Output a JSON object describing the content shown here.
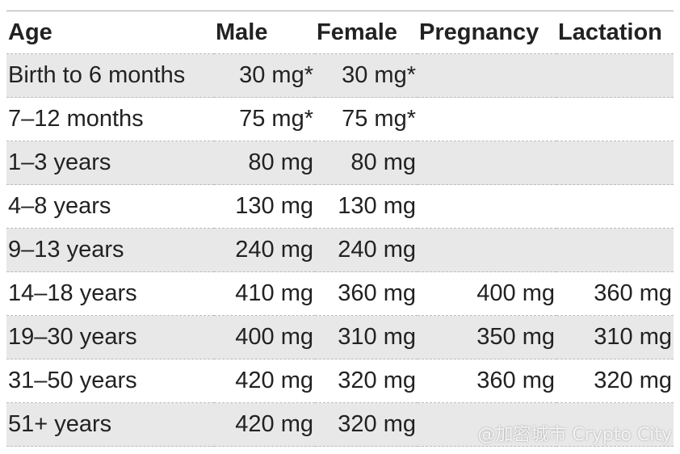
{
  "table": {
    "header": [
      "Age",
      "Male",
      "Female",
      "Pregnancy",
      "Lactation"
    ],
    "rows": [
      [
        "Birth to 6 months",
        "30 mg*",
        "30 mg*"
      ],
      [
        "7–12 months",
        "75 mg*",
        "75 mg*"
      ],
      [
        "1–3 years",
        "80 mg",
        "80 mg"
      ],
      [
        "4–8 years",
        "130 mg",
        "130 mg"
      ],
      [
        "9–13 years",
        "240 mg",
        "240 mg"
      ],
      [
        "14–18 years",
        "410 mg",
        "360 mg",
        "400 mg",
        "360 mg"
      ],
      [
        "19–30 years",
        "400 mg",
        "310 mg",
        "350 mg",
        "310 mg"
      ],
      [
        "31–50 years",
        "420 mg",
        "320 mg",
        "360 mg",
        "320 mg"
      ],
      [
        "51+ years",
        "420 mg",
        "320 mg"
      ]
    ]
  },
  "watermark": "@加密城市 Crypto City"
}
